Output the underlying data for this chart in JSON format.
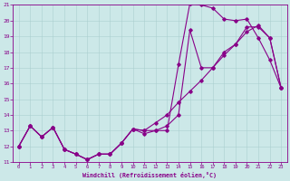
{
  "xlabel": "Windchill (Refroidissement éolien,°C)",
  "xlim": [
    -0.5,
    23.5
  ],
  "ylim": [
    11,
    21
  ],
  "xticks": [
    0,
    1,
    2,
    3,
    4,
    5,
    6,
    7,
    8,
    9,
    10,
    11,
    12,
    13,
    14,
    15,
    16,
    17,
    18,
    19,
    20,
    21,
    22,
    23
  ],
  "yticks": [
    11,
    12,
    13,
    14,
    15,
    16,
    17,
    18,
    19,
    20,
    21
  ],
  "bg_color": "#cce8e8",
  "line_color": "#880088",
  "grid_color": "#aacfcf",
  "curve1_x": [
    0,
    1,
    2,
    3,
    4,
    5,
    6,
    7,
    8,
    9,
    10,
    11,
    12,
    13,
    14,
    15,
    16,
    17,
    18,
    19,
    20,
    21,
    22,
    23
  ],
  "curve1_y": [
    12.0,
    13.3,
    12.6,
    13.2,
    11.8,
    11.5,
    11.15,
    11.5,
    11.5,
    12.2,
    13.1,
    13.0,
    13.0,
    13.0,
    17.2,
    21.1,
    21.0,
    20.8,
    20.1,
    20.0,
    20.1,
    18.9,
    17.5,
    15.7
  ],
  "curve2_x": [
    0,
    1,
    2,
    3,
    4,
    5,
    6,
    7,
    8,
    9,
    10,
    11,
    12,
    13,
    14,
    15,
    16,
    17,
    18,
    19,
    20,
    21,
    22,
    23
  ],
  "curve2_y": [
    12.0,
    13.3,
    12.6,
    13.2,
    11.8,
    11.5,
    11.15,
    11.5,
    11.5,
    12.2,
    13.1,
    12.8,
    13.0,
    13.3,
    14.0,
    19.4,
    17.0,
    17.0,
    18.0,
    18.5,
    19.6,
    19.6,
    18.9,
    15.7
  ],
  "curve3_x": [
    0,
    1,
    2,
    3,
    4,
    5,
    6,
    7,
    8,
    9,
    10,
    11,
    12,
    13,
    14,
    15,
    16,
    17,
    18,
    19,
    20,
    21,
    22,
    23
  ],
  "curve3_y": [
    12.0,
    13.3,
    12.6,
    13.2,
    11.8,
    11.5,
    11.15,
    11.5,
    11.5,
    12.2,
    13.1,
    13.0,
    13.5,
    14.0,
    14.8,
    15.5,
    16.2,
    17.0,
    17.8,
    18.5,
    19.3,
    19.7,
    18.9,
    15.7
  ]
}
